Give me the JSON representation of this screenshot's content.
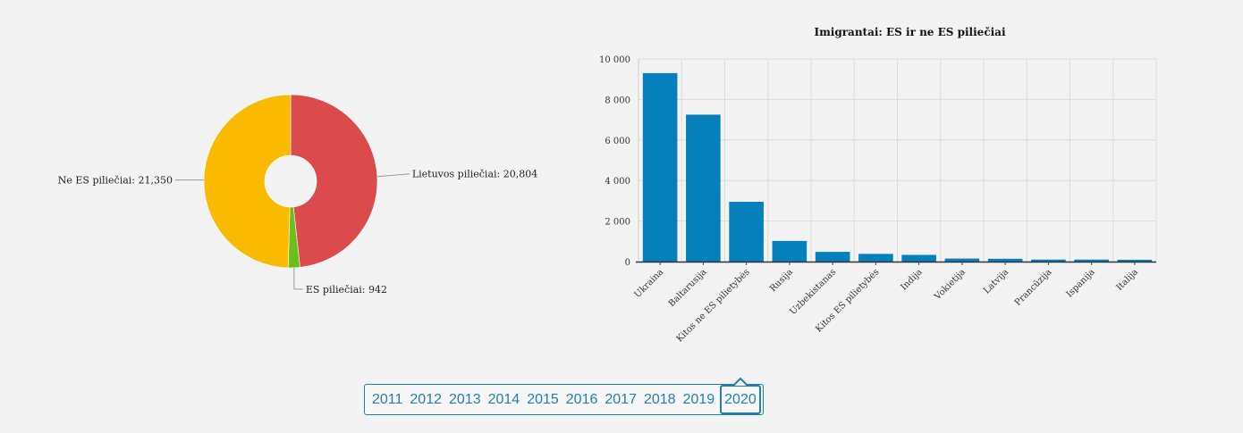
{
  "chart_data": [
    {
      "type": "pie",
      "donut": true,
      "slices": [
        {
          "label": "Lietuvos piliečiai: 20,804",
          "value": 20804,
          "color": "#dc4b4b"
        },
        {
          "label": "ES piliečiai: 942",
          "value": 942,
          "color": "#6cbf1a"
        },
        {
          "label": "Ne ES piliečiai: 21,350",
          "value": 21350,
          "color": "#f9ba00"
        }
      ]
    },
    {
      "type": "bar",
      "title": "Imigrantai: ES ir ne ES piliečiai",
      "categories": [
        "Ukraina",
        "Baltarusija",
        "Kitos ne ES pilietybės",
        "Rusija",
        "Uzbekistanas",
        "Kitos ES pilietybės",
        "Indija",
        "Vokietija",
        "Latvija",
        "Prancūzija",
        "Ispanija",
        "Italija"
      ],
      "values": [
        9300,
        7250,
        2950,
        1020,
        480,
        380,
        330,
        150,
        140,
        100,
        100,
        90
      ],
      "ylim": [
        0,
        10000
      ],
      "yticks": [
        "0",
        "2 000",
        "4 000",
        "6 000",
        "8 000",
        "10 000"
      ],
      "ytick_values": [
        0,
        2000,
        4000,
        6000,
        8000,
        10000
      ],
      "bar_color": "#0580bc",
      "grid": true
    }
  ],
  "year_selector": {
    "years": [
      "2011",
      "2012",
      "2013",
      "2014",
      "2015",
      "2016",
      "2017",
      "2018",
      "2019",
      "2020"
    ],
    "selected": "2020",
    "accent": "#1f7fb5"
  }
}
